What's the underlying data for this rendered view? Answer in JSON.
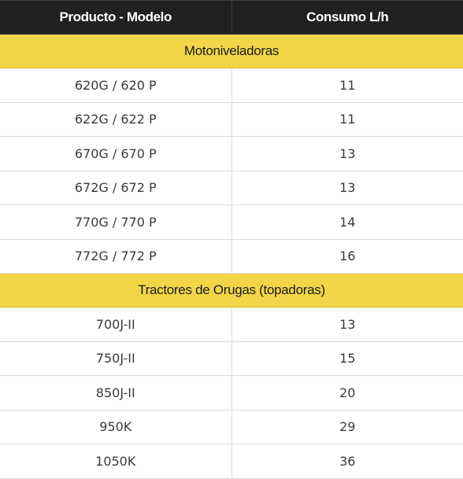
{
  "table": {
    "headers": [
      "Producto - Modelo",
      "Consumo L/h"
    ],
    "sections": [
      {
        "title": "Motoniveladoras",
        "rows": [
          {
            "model": "620G / 620 P",
            "consumo": "11"
          },
          {
            "model": "622G / 622 P",
            "consumo": "11"
          },
          {
            "model": "670G / 670 P",
            "consumo": "13"
          },
          {
            "model": "672G / 672 P",
            "consumo": "13"
          },
          {
            "model": "770G / 770 P",
            "consumo": "14"
          },
          {
            "model": "772G / 772 P",
            "consumo": "16"
          }
        ]
      },
      {
        "title": "Tractores de Orugas (topadoras)",
        "rows": [
          {
            "model": "700J-II",
            "consumo": "13"
          },
          {
            "model": "750J-II",
            "consumo": "15"
          },
          {
            "model": "850J-II",
            "consumo": "20"
          },
          {
            "model": "950K",
            "consumo": "29"
          },
          {
            "model": "1050K",
            "consumo": "36"
          }
        ]
      }
    ]
  }
}
